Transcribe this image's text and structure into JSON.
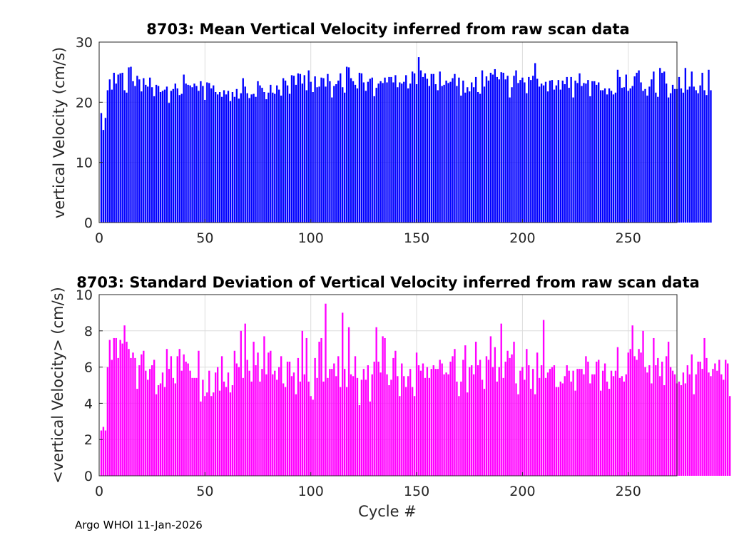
{
  "footer": "Argo WHOI 11-Jan-2026",
  "chart_data": [
    {
      "type": "bar",
      "title": "8703: Mean Vertical Velocity inferred from raw scan data",
      "xlabel": "",
      "ylabel": "vertical Velocity (cm/s)",
      "xlim": [
        0,
        273
      ],
      "ylim": [
        0,
        30
      ],
      "xticks": [
        0,
        50,
        100,
        150,
        200,
        250
      ],
      "yticks": [
        0,
        10,
        20,
        30
      ],
      "grid": true,
      "color": "#0000ff",
      "x_start": 1,
      "values": [
        18.2,
        15.4,
        17.4,
        22.0,
        23.8,
        22.1,
        24.9,
        23.1,
        24.6,
        24.8,
        24.9,
        22.0,
        21.6,
        25.8,
        25.9,
        23.5,
        22.7,
        24.4,
        23.8,
        21.8,
        24.0,
        22.9,
        22.6,
        24.1,
        22.5,
        21.0,
        22.9,
        22.7,
        21.7,
        21.9,
        22.1,
        22.6,
        19.9,
        21.9,
        22.2,
        23.1,
        22.3,
        21.2,
        21.4,
        24.6,
        23.1,
        22.9,
        22.8,
        22.5,
        23.1,
        22.7,
        21.9,
        23.5,
        22.7,
        20.4,
        23.3,
        23.2,
        22.3,
        22.8,
        21.7,
        21.3,
        21.7,
        20.9,
        22.0,
        21.3,
        21.9,
        20.2,
        21.7,
        20.9,
        22.2,
        20.6,
        21.5,
        24.0,
        22.6,
        21.5,
        20.7,
        21.3,
        21.4,
        20.9,
        23.5,
        22.8,
        22.4,
        21.7,
        20.5,
        21.6,
        22.9,
        21.6,
        21.4,
        22.8,
        22.1,
        21.1,
        24.0,
        23.6,
        22.8,
        21.4,
        24.5,
        24.4,
        22.9,
        24.8,
        24.7,
        23.1,
        24.5,
        22.0,
        25.3,
        23.4,
        21.7,
        24.3,
        22.5,
        22.6,
        24.1,
        24.0,
        22.6,
        24.7,
        23.5,
        20.8,
        22.7,
        23.0,
        23.6,
        24.8,
        22.5,
        21.6,
        25.9,
        25.8,
        24.0,
        23.5,
        22.9,
        22.3,
        24.9,
        24.8,
        23.3,
        21.9,
        23.4,
        23.9,
        24.1,
        21.0,
        22.4,
        23.1,
        23.5,
        23.2,
        24.1,
        23.3,
        24.2,
        24.2,
        23.3,
        24.5,
        22.5,
        23.3,
        23.1,
        23.4,
        24.5,
        22.3,
        23.1,
        25.1,
        24.8,
        23.0,
        27.5,
        25.3,
        24.2,
        24.8,
        23.9,
        22.7,
        24.7,
        24.7,
        23.0,
        22.0,
        25.1,
        22.7,
        22.9,
        23.6,
        23.2,
        23.4,
        24.0,
        24.7,
        22.7,
        24.1,
        21.1,
        23.6,
        21.6,
        22.5,
        21.8,
        23.3,
        22.5,
        24.2,
        21.7,
        21.4,
        25.3,
        22.6,
        24.3,
        23.6,
        24.9,
        24.6,
        25.5,
        24.2,
        23.8,
        25.0,
        24.9,
        23.8,
        24.4,
        20.8,
        22.5,
        24.4,
        25.3,
        23.2,
        23.7,
        24.1,
        23.3,
        21.5,
        24.2,
        23.7,
        24.4,
        26.5,
        23.9,
        22.6,
        23.1,
        22.8,
        23.4,
        21.8,
        23.6,
        23.7,
        22.1,
        22.8,
        23.7,
        22.1,
        23.6,
        23.0,
        24.2,
        22.4,
        24.2,
        20.8,
        23.6,
        23.2,
        24.8,
        22.7,
        23.2,
        23.1,
        23.7,
        21.0,
        23.5,
        23.5,
        22.9,
        23.3,
        22.0,
        22.0,
        22.3,
        21.3,
        22.3,
        21.9,
        21.3,
        21.6,
        25.4,
        24.2,
        22.4,
        22.5,
        24.6,
        21.9,
        22.3,
        22.7,
        24.3,
        24.9,
        25.3,
        23.3,
        21.9,
        22.2,
        21.1,
        22.6,
        23.8,
        25.1,
        21.6,
        20.9,
        25.7,
        24.9,
        25.1,
        23.1,
        20.8,
        21.5,
        22.9,
        22.2,
        22.2,
        24.2,
        22.3,
        21.6,
        25.7,
        22.1,
        22.6,
        25.1,
        22.6,
        22.0,
        21.5,
        22.8,
        24.9,
        22.0,
        21.2,
        25.4,
        22.0
      ]
    },
    {
      "type": "bar",
      "title": "8703: Standard Deviation of Vertical Velocity inferred from raw scan data",
      "xlabel": "Cycle #",
      "ylabel": "<vertical Velocity> (cm/s)",
      "xlim": [
        0,
        273
      ],
      "ylim": [
        0,
        10
      ],
      "xticks": [
        0,
        50,
        100,
        150,
        200,
        250
      ],
      "yticks": [
        0,
        2,
        4,
        6,
        8,
        10
      ],
      "grid": true,
      "color": "#ff00ff",
      "x_start": 1,
      "values": [
        2.5,
        2.7,
        2.5,
        6.0,
        7.5,
        6.4,
        7.6,
        7.6,
        6.5,
        7.5,
        7.3,
        8.3,
        7.4,
        7.0,
        6.5,
        6.8,
        6.5,
        4.8,
        6.1,
        6.7,
        6.9,
        5.8,
        5.3,
        5.9,
        6.1,
        6.4,
        4.5,
        5.0,
        5.1,
        5.7,
        4.9,
        7.0,
        5.9,
        6.6,
        5.4,
        5.1,
        6.6,
        7.0,
        5.8,
        6.7,
        6.3,
        6.2,
        5.8,
        5.4,
        5.4,
        5.4,
        6.9,
        4.1,
        5.3,
        4.4,
        4.6,
        5.8,
        4.4,
        4.6,
        5.7,
        6.0,
        4.7,
        6.6,
        5.2,
        4.9,
        5.7,
        4.6,
        5.0,
        6.9,
        6.2,
        6.0,
        8.0,
        5.4,
        8.4,
        6.4,
        5.8,
        5.2,
        7.4,
        6.1,
        6.8,
        5.2,
        5.9,
        7.7,
        5.6,
        6.8,
        6.9,
        5.6,
        5.8,
        5.3,
        6.0,
        6.6,
        5.1,
        4.9,
        6.3,
        6.3,
        5.5,
        5.7,
        4.5,
        6.5,
        5.2,
        8.0,
        5.6,
        7.6,
        5.2,
        4.4,
        4.2,
        6.5,
        5.4,
        7.4,
        7.6,
        5.2,
        9.5,
        5.4,
        5.9,
        5.9,
        6.2,
        5.5,
        6.6,
        4.9,
        9.0,
        5.9,
        4.9,
        8.2,
        5.6,
        5.5,
        6.6,
        5.4,
        3.9,
        5.3,
        5.9,
        5.3,
        6.1,
        4.1,
        5.6,
        6.3,
        8.2,
        6.3,
        5.7,
        7.7,
        7.6,
        5.6,
        5.0,
        5.3,
        6.5,
        6.9,
        5.5,
        4.4,
        6.2,
        5.5,
        4.9,
        5.5,
        5.9,
        4.9,
        4.4,
        6.8,
        6.1,
        5.8,
        6.2,
        5.4,
        6.0,
        5.4,
        5.9,
        6.1,
        5.9,
        5.9,
        6.4,
        6.2,
        5.6,
        5.7,
        5.6,
        6.3,
        6.6,
        7.0,
        5.2,
        4.4,
        5.2,
        6.4,
        7.2,
        4.6,
        6.0,
        6.1,
        5.6,
        7.4,
        6.1,
        6.4,
        5.3,
        4.8,
        6.6,
        6.4,
        7.7,
        6.0,
        7.1,
        5.2,
        6.0,
        8.4,
        5.4,
        6.3,
        6.9,
        6.5,
        6.7,
        7.4,
        5.1,
        4.5,
        5.8,
        6.0,
        5.3,
        7.0,
        6.1,
        4.8,
        5.9,
        4.5,
        6.8,
        5.4,
        6.1,
        8.6,
        5.4,
        5.7,
        5.9,
        6.0,
        6.1,
        4.9,
        4.9,
        5.2,
        5.1,
        5.5,
        6.1,
        5.8,
        5.2,
        5.8,
        4.7,
        5.9,
        5.9,
        5.9,
        5.6,
        6.6,
        6.3,
        5.1,
        5.6,
        5.6,
        6.3,
        6.4,
        4.7,
        5.8,
        6.2,
        5.2,
        4.8,
        5.8,
        5.5,
        5.8,
        7.1,
        5.4,
        5.5,
        5.2,
        5.6,
        6.8,
        7.0,
        8.3,
        6.6,
        6.4,
        7.0,
        6.8,
        8.0,
        6.0,
        5.7,
        6.1,
        5.1,
        7.6,
        6.1,
        6.5,
        5.5,
        6.3,
        5.0,
        6.6,
        7.4,
        6.0,
        5.8,
        5.6,
        5.1,
        5.2,
        5.0,
        5.7,
        5.1,
        6.1,
        5.6,
        6.7,
        4.5,
        5.6,
        6.3,
        6.3,
        5.9,
        7.6,
        6.5,
        5.7,
        5.5,
        5.9,
        6.2,
        5.8,
        6.4,
        5.6,
        5.3,
        6.4,
        6.2,
        4.4
      ]
    }
  ]
}
